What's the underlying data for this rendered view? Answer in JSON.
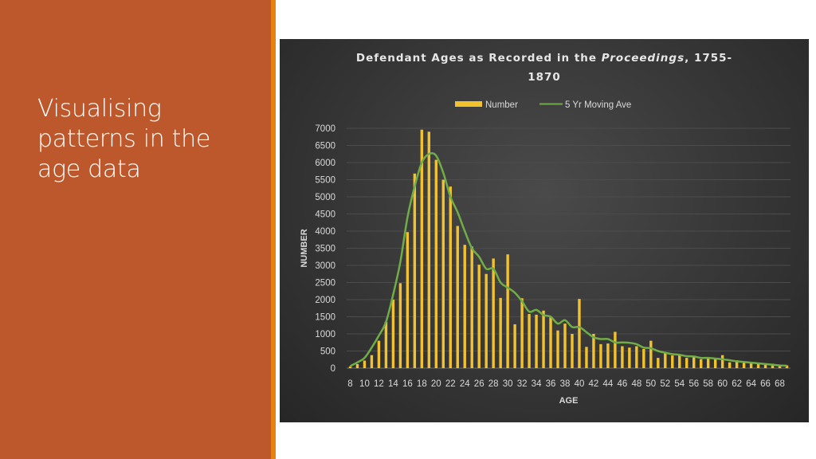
{
  "slide": {
    "title": "Visualising patterns in the age data",
    "colors": {
      "panel": "#bd582c",
      "accent": "#e48312",
      "background": "#ffffff"
    }
  },
  "chart_data": {
    "type": "bar",
    "title_parts": [
      {
        "text": "Defendant Ages as Recorded in the ",
        "italic": false
      },
      {
        "text": "Proceedings",
        "italic": true
      },
      {
        "text": ", 1755-1870",
        "italic": false
      }
    ],
    "xlabel": "AGE",
    "ylabel": "NUMBER",
    "ylim": [
      0,
      7000
    ],
    "yticks": [
      0,
      500,
      1000,
      1500,
      2000,
      2500,
      3000,
      3500,
      4000,
      4500,
      5000,
      5500,
      6000,
      6500,
      7000
    ],
    "grid": true,
    "legend": {
      "position": "top",
      "entries": [
        "Number",
        "5 Yr Moving Ave"
      ]
    },
    "x": [
      8,
      9,
      10,
      11,
      12,
      13,
      14,
      15,
      16,
      17,
      18,
      19,
      20,
      21,
      22,
      23,
      24,
      25,
      26,
      27,
      28,
      29,
      30,
      31,
      32,
      33,
      34,
      35,
      36,
      37,
      38,
      39,
      40,
      41,
      42,
      43,
      44,
      45,
      46,
      47,
      48,
      49,
      50,
      51,
      52,
      53,
      54,
      55,
      56,
      57,
      58,
      59,
      60,
      61,
      62,
      63,
      64,
      65,
      66,
      67,
      68,
      69
    ],
    "xtick_labels": [
      8,
      10,
      12,
      14,
      16,
      18,
      20,
      22,
      24,
      26,
      28,
      30,
      32,
      34,
      36,
      38,
      40,
      42,
      44,
      46,
      48,
      50,
      52,
      54,
      56,
      58,
      60,
      62,
      64,
      66,
      68
    ],
    "series": [
      {
        "name": "Number",
        "kind": "bar",
        "color": "#f2c12e",
        "values": [
          50,
          120,
          220,
          380,
          800,
          1350,
          2000,
          2480,
          3970,
          5680,
          6960,
          6900,
          6080,
          5500,
          5300,
          4150,
          3600,
          3550,
          3020,
          2750,
          3200,
          2050,
          3320,
          1280,
          2040,
          1580,
          1560,
          1680,
          1480,
          1100,
          1300,
          1000,
          2020,
          620,
          1000,
          700,
          720,
          1060,
          640,
          600,
          640,
          560,
          800,
          300,
          460,
          370,
          390,
          300,
          330,
          260,
          320,
          260,
          380,
          170,
          230,
          180,
          160,
          150,
          130,
          130,
          100,
          80
        ]
      },
      {
        "name": "5 Yr Moving Ave",
        "kind": "line",
        "color": "#70ad47",
        "values": [
          60,
          170,
          300,
          600,
          950,
          1350,
          2150,
          3100,
          4400,
          5300,
          6000,
          6250,
          6200,
          5700,
          5000,
          4550,
          4000,
          3500,
          3250,
          2900,
          2900,
          2500,
          2350,
          2200,
          1950,
          1650,
          1700,
          1550,
          1500,
          1300,
          1400,
          1200,
          1200,
          1050,
          900,
          850,
          850,
          750,
          750,
          740,
          700,
          600,
          580,
          500,
          450,
          410,
          390,
          350,
          340,
          300,
          300,
          280,
          260,
          230,
          200,
          180,
          160,
          140,
          120,
          100,
          80,
          70
        ]
      }
    ]
  }
}
